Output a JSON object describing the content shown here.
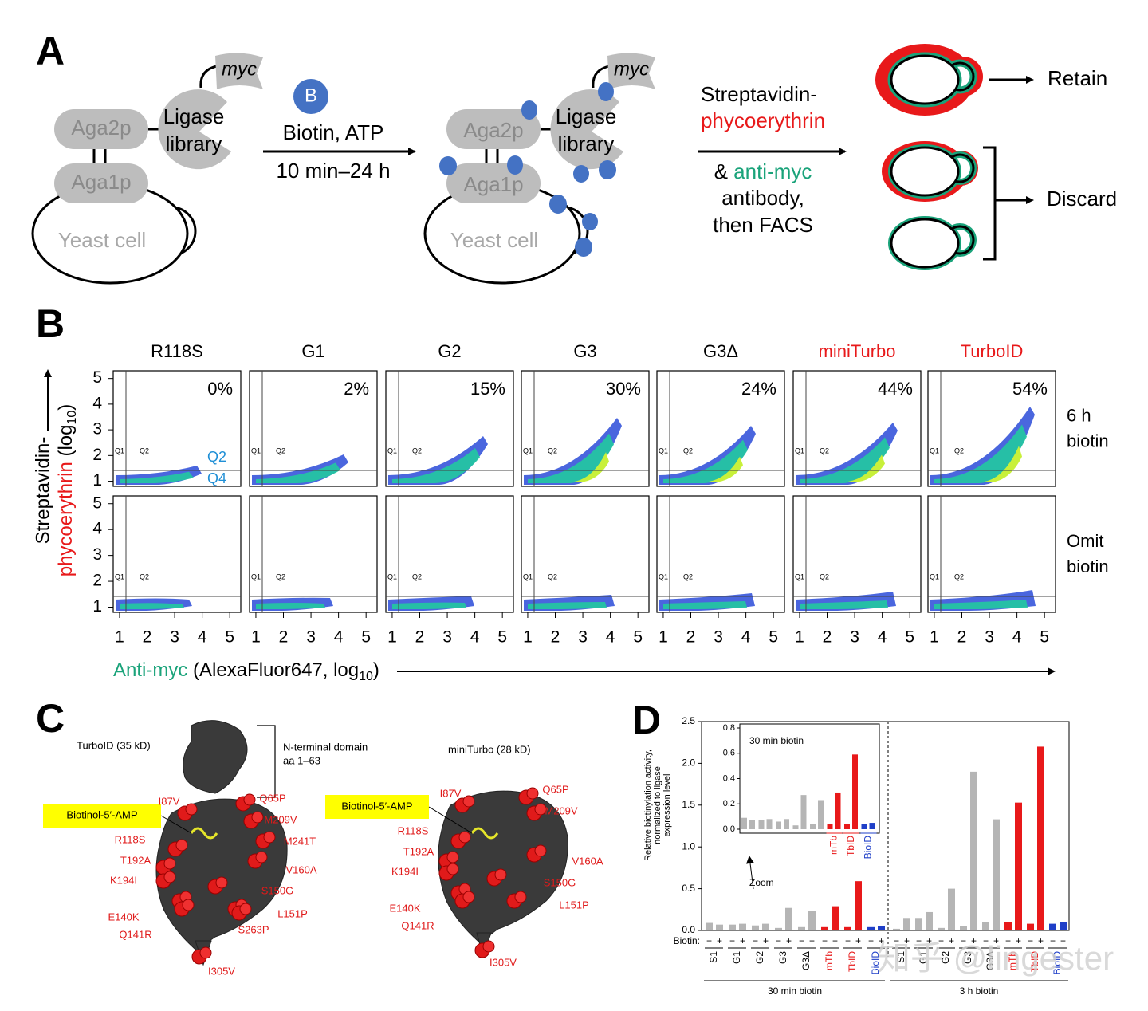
{
  "panel_a": {
    "label": "A",
    "myc": "myc",
    "ligase_line1": "Ligase",
    "ligase_line2": "library",
    "aga2p": "Aga2p",
    "aga1p": "Aga1p",
    "yeast_cell": "Yeast cell",
    "biotin_icon": "B",
    "step1_line1": "Biotin, ATP",
    "step1_line2": "10 min–24 h",
    "step2_line1": "Streptavidin-",
    "step2_line2": "phycoerythrin",
    "step2_line3a": "& ",
    "step2_line3b": "anti-myc",
    "step2_line4": "antibody,",
    "step2_line5": "then FACS",
    "retain": "Retain",
    "discard": "Discard"
  },
  "panel_b": {
    "label": "B",
    "columns": [
      {
        "name": "R118S",
        "percent": "0%",
        "color": "#000000"
      },
      {
        "name": "G1",
        "percent": "2%",
        "color": "#000000"
      },
      {
        "name": "G2",
        "percent": "15%",
        "color": "#000000"
      },
      {
        "name": "G3",
        "percent": "30%",
        "color": "#000000"
      },
      {
        "name": "G3Δ",
        "percent": "24%",
        "color": "#000000"
      },
      {
        "name": "miniTurbo",
        "percent": "44%",
        "color": "#e8191a"
      },
      {
        "name": "TurboID",
        "percent": "54%",
        "color": "#e8191a"
      }
    ],
    "rows": [
      {
        "line1": "6 h",
        "line2": "biotin"
      },
      {
        "line1": "Omit",
        "line2": "biotin"
      }
    ],
    "quadrant_small": [
      "Q1",
      "Q2"
    ],
    "quadrant_large": [
      "Q2",
      "Q4"
    ],
    "xlim": [
      0.77,
      5.4
    ],
    "ylim": [
      0.8,
      5.3
    ],
    "ticks": [
      1,
      2,
      3,
      4,
      5
    ],
    "y_label_line1": "Streptavidin-",
    "y_label_line2": [
      "phycoerythrin",
      " (log",
      "10",
      ")"
    ],
    "x_label": [
      "Anti-myc",
      " (AlexaFluor647, log",
      "10",
      ")"
    ]
  },
  "panel_c": {
    "label": "C",
    "turboid_title": "TurboID (35 kD)",
    "nterm_line1": "N-terminal domain",
    "nterm_line2": "aa 1–63",
    "miniturbo_title": "miniTurbo (28 kD)",
    "ligand": "Biotinol-5′-AMP",
    "turboid_mutations": [
      "I87V",
      "Q65P",
      "M209V",
      "R118S",
      "M241T",
      "T192A",
      "V160A",
      "K194I",
      "S150G",
      "E140K",
      "L151P",
      "Q141R",
      "S263P",
      "I305V"
    ],
    "miniturbo_mutations": [
      "I87V",
      "Q65P",
      "M209V",
      "R118S",
      "T192A",
      "V160A",
      "K194I",
      "S150G",
      "E140K",
      "L151P",
      "Q141R",
      "I305V"
    ]
  },
  "panel_d": {
    "label": "D",
    "type": "bar",
    "y_label": [
      "Relative biotinylation activity,",
      "normalized to ligase",
      "expression level"
    ],
    "ylim": [
      0,
      2.5
    ],
    "yticks": [
      {
        "value": 0,
        "label": "0.0"
      },
      {
        "value": 0.5,
        "label": "0.5"
      },
      {
        "value": 1,
        "label": "1.0"
      },
      {
        "value": 1.5,
        "label": "1.5"
      },
      {
        "value": 2,
        "label": "2.0"
      },
      {
        "value": 2.5,
        "label": "2.5"
      }
    ],
    "categories": [
      "S1",
      "G1",
      "G2",
      "G3",
      "G3Δ",
      "mTb",
      "TbID",
      "BioID"
    ],
    "colors": [
      "#b5b5b5",
      "#b5b5b5",
      "#b5b5b5",
      "#b5b5b5",
      "#b5b5b5",
      "#e8191a",
      "#e8191a",
      "#1f3fc8"
    ],
    "biotin_label": "Biotin:",
    "minus_sign": "−",
    "plus_sign": "+",
    "groups": [
      {
        "name": "30 min biotin",
        "minus": [
          0.09,
          0.07,
          0.06,
          0.03,
          0.04,
          0.04,
          0.04,
          0.04
        ],
        "plus": [
          0.07,
          0.08,
          0.08,
          0.27,
          0.23,
          0.29,
          0.59,
          0.05
        ]
      },
      {
        "name": "3 h biotin",
        "minus": [
          0.02,
          0.15,
          0.03,
          0.05,
          0.1,
          0.1,
          0.08,
          0.08
        ],
        "plus": [
          0.15,
          0.22,
          0.5,
          1.9,
          1.33,
          1.53,
          2.2,
          0.1
        ]
      }
    ],
    "inset": {
      "ylim": [
        0,
        0.8
      ],
      "yticks": [
        {
          "value": 0,
          "label": "0.0"
        },
        {
          "value": 0.2,
          "label": "0.2"
        },
        {
          "value": 0.4,
          "label": "0.4"
        },
        {
          "value": 0.6,
          "label": "0.6"
        },
        {
          "value": 0.8,
          "label": "0.8"
        }
      ]
    },
    "zoom": "Zoom"
  },
  "watermark": "知乎 @lingester"
}
